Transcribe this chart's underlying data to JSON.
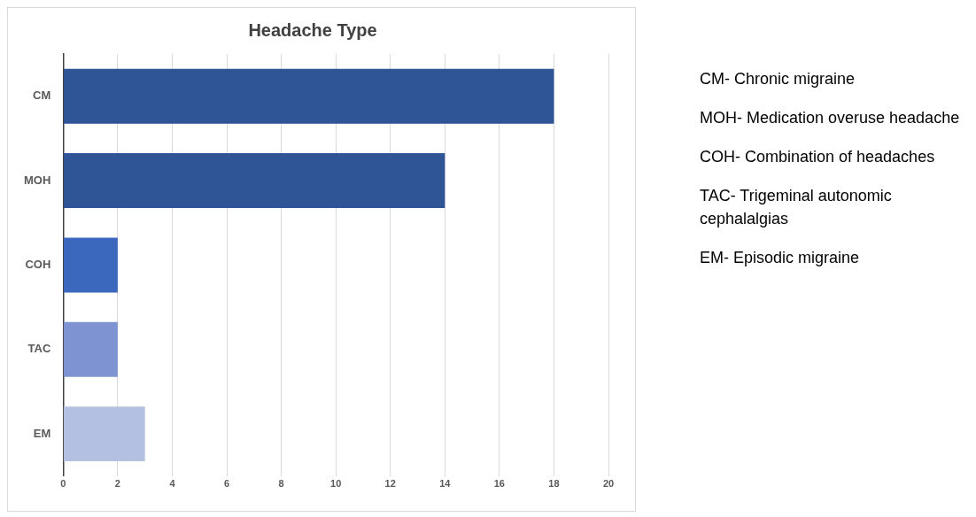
{
  "chart_data": {
    "type": "bar",
    "orientation": "horizontal",
    "title": "Headache Type",
    "categories": [
      "CM",
      "MOH",
      "COH",
      "TAC",
      "EM"
    ],
    "values": [
      18,
      14,
      2,
      2,
      3
    ],
    "colors": [
      "#2f5597",
      "#2f5597",
      "#3b68bc",
      "#7d93d2",
      "#b4c0e2"
    ],
    "xlim": [
      0,
      20
    ],
    "xticks": [
      0,
      2,
      4,
      6,
      8,
      10,
      12,
      14,
      16,
      18,
      20
    ],
    "grid": "x",
    "annotations": [
      "CM- Chronic migraine",
      "MOH- Medication overuse headache",
      "COH- Combination of headaches",
      "TAC- Trigeminal autonomic cephalalgias",
      "EM- Episodic migraine"
    ]
  }
}
